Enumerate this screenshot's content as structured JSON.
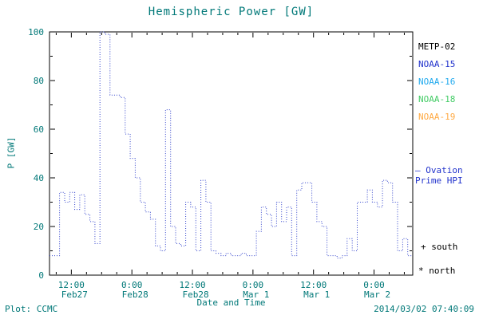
{
  "title": "Hemispheric Power [GW]",
  "y_axis_label": "P [GW]",
  "x_axis_label": "Date and Time",
  "footer": {
    "left": "Plot: CCMC",
    "right": "2014/03/02 07:40:09"
  },
  "colors": {
    "text": "#007878",
    "axis": "#000000",
    "hpi_line": "#3344cc"
  },
  "legend": {
    "satellites": [
      {
        "label": "METP-02",
        "color": "#000000"
      },
      {
        "label": "NOAA-15",
        "color": "#2233cc"
      },
      {
        "label": "NOAA-16",
        "color": "#22aaee"
      },
      {
        "label": "NOAA-18",
        "color": "#44cc66"
      },
      {
        "label": "NOAA-19",
        "color": "#ffaa44"
      }
    ],
    "ovation_line1": "– Ovation",
    "ovation_line2": "Prime HPI",
    "ovation_color": "#2233cc",
    "south": "+ south",
    "north": "* north"
  },
  "chart_data": {
    "type": "line",
    "subtype": "step",
    "line_style": "dotted",
    "title": "Hemispheric Power [GW]",
    "xlabel": "Date and Time",
    "ylabel": "P [GW]",
    "ylim": [
      0,
      100
    ],
    "yticks": [
      0,
      20,
      40,
      60,
      80,
      100
    ],
    "x_hours_range": [
      0,
      72
    ],
    "x_ticks": [
      {
        "hour": 4.33,
        "time": "12:00",
        "date": "Feb27"
      },
      {
        "hour": 16.33,
        "time": "0:00",
        "date": "Feb28"
      },
      {
        "hour": 28.33,
        "time": "12:00",
        "date": "Feb28"
      },
      {
        "hour": 40.33,
        "time": "0:00",
        "date": "Mar 1"
      },
      {
        "hour": 52.33,
        "time": "12:00",
        "date": "Mar 1"
      },
      {
        "hour": 64.33,
        "time": "0:00",
        "date": "Mar 2"
      }
    ],
    "series": [
      {
        "name": "Ovation Prime HPI",
        "color": "#3344cc",
        "hours": [
          0,
          1,
          2,
          3,
          4,
          5,
          6,
          7,
          8,
          9,
          10,
          11,
          12,
          13,
          14,
          15,
          16,
          17,
          18,
          19,
          20,
          21,
          22,
          23,
          24,
          25,
          26,
          27,
          28,
          29,
          30,
          31,
          32,
          33,
          34,
          35,
          36,
          37,
          38,
          39,
          40,
          41,
          42,
          43,
          44,
          45,
          46,
          47,
          48,
          49,
          50,
          51,
          52,
          53,
          54,
          55,
          56,
          57,
          58,
          59,
          60,
          61,
          62,
          63,
          64,
          65,
          66,
          67,
          68,
          69,
          70,
          71
        ],
        "values": [
          8,
          8,
          34,
          30,
          34,
          27,
          33,
          25,
          22,
          13,
          100,
          99,
          74,
          74,
          73,
          58,
          48,
          40,
          30,
          26,
          23,
          12,
          10,
          68,
          20,
          13,
          12,
          30,
          28,
          10,
          39,
          30,
          10,
          9,
          8,
          9,
          8,
          8,
          9,
          8,
          8,
          18,
          28,
          25,
          20,
          30,
          22,
          28,
          8,
          35,
          38,
          38,
          30,
          22,
          20,
          8,
          8,
          7,
          8,
          15,
          10,
          30,
          30,
          35,
          30,
          28,
          39,
          38,
          30,
          10,
          15,
          8
        ]
      }
    ]
  }
}
